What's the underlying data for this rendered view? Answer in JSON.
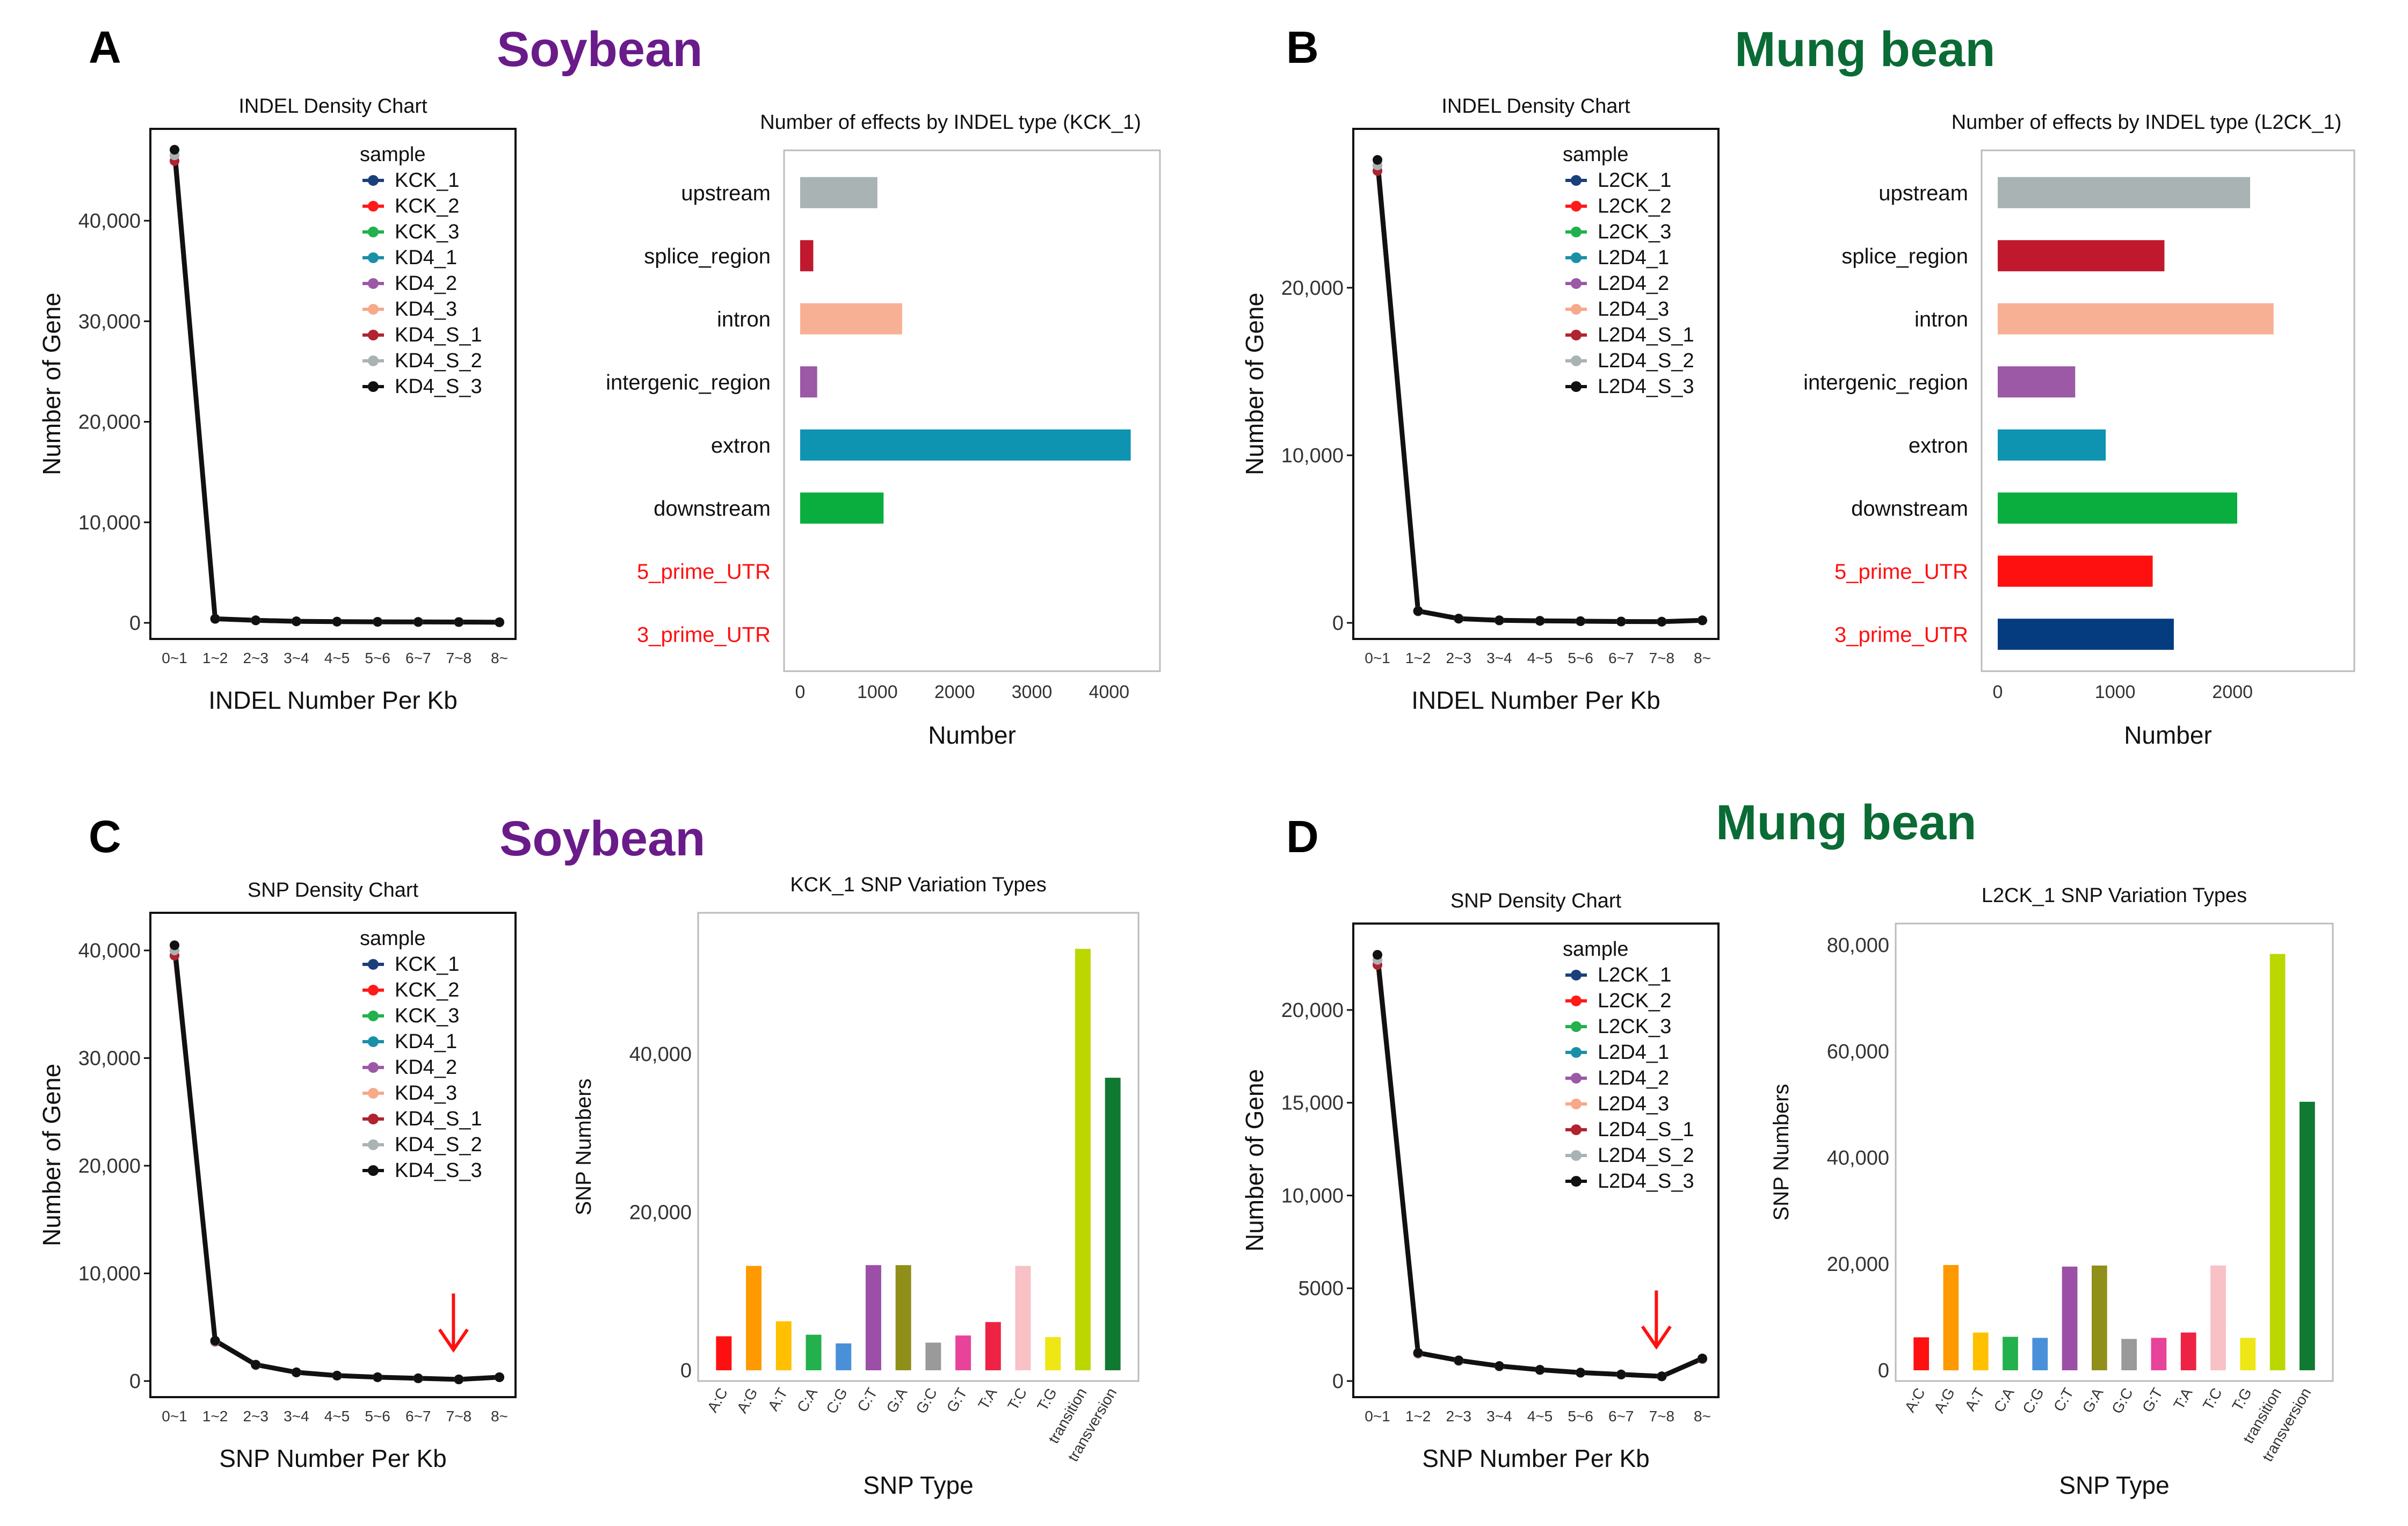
{
  "panels": {
    "A": {
      "letter": "A",
      "species": "Soybean"
    },
    "B": {
      "letter": "B",
      "species": "Mung bean"
    },
    "C": {
      "letter": "C",
      "species": "Soybean"
    },
    "D": {
      "letter": "D",
      "species": "Mung bean"
    }
  },
  "colors": {
    "samples": [
      "#1a3f7a",
      "#ff1a1a",
      "#22b14c",
      "#1a8fa8",
      "#9b59a6",
      "#f6a98b",
      "#b0232f",
      "#a9b3b3",
      "#111111"
    ],
    "indel_types": [
      "#a9b3b3",
      "#c0182c",
      "#f8b095",
      "#9b59a6",
      "#0e93b0",
      "#0aae3e",
      "#ff1010",
      "#053c80"
    ],
    "snp_types": [
      "#ff1010",
      "#ff9900",
      "#ffc000",
      "#22b14c",
      "#4a90d9",
      "#9b4fa6",
      "#8f8f1a",
      "#9a9a9a",
      "#e8439a",
      "#ee2244",
      "#f7c1c6",
      "#eee615",
      "#bcd600",
      "#107a32"
    ],
    "red_label": "#ff1010",
    "arrow": "#ff1010"
  },
  "chart_data": [
    {
      "id": "A1",
      "type": "line",
      "title": "INDEL Density Chart",
      "xlabel": "INDEL Number Per Kb",
      "ylabel": "Number of Gene",
      "categories": [
        "0~1",
        "1~2",
        "2~3",
        "3~4",
        "4~5",
        "5~6",
        "6~7",
        "7~8",
        "8~"
      ],
      "ylim": [
        0,
        47000
      ],
      "yticks": [
        0,
        10000,
        20000,
        30000,
        40000
      ],
      "ytick_labels": [
        "0",
        "10,000",
        "20,000",
        "30,000",
        "40,000"
      ],
      "legend_title": "sample",
      "legend": [
        "KCK_1",
        "KCK_2",
        "KCK_3",
        "KD4_1",
        "KD4_2",
        "KD4_3",
        "KD4_S_1",
        "KD4_S_2",
        "KD4_S_3"
      ],
      "values": [
        46500,
        400,
        250,
        150,
        120,
        100,
        90,
        80,
        60
      ]
    },
    {
      "id": "A2",
      "type": "bar",
      "orientation": "horizontal",
      "title": "Number of effects by INDEL type (KCK_1)",
      "xlabel": "Number",
      "ylabel": "",
      "categories": [
        "upstream",
        "splice_region",
        "intron",
        "intergenic_region",
        "extron",
        "downstream",
        "5_prime_UTR",
        "3_prime_UTR"
      ],
      "red_categories": [
        "5_prime_UTR",
        "3_prime_UTR"
      ],
      "values": [
        1000,
        170,
        1320,
        220,
        4280,
        1080,
        0,
        0
      ],
      "xlim": [
        0,
        4450
      ],
      "xticks": [
        0,
        1000,
        2000,
        3000,
        4000
      ],
      "xtick_labels": [
        "0",
        "1000",
        "2000",
        "3000",
        "4000"
      ]
    },
    {
      "id": "B1",
      "type": "line",
      "title": "INDEL Density Chart",
      "xlabel": "INDEL Number Per Kb",
      "ylabel": "Number of Gene",
      "categories": [
        "0~1",
        "1~2",
        "2~3",
        "3~4",
        "4~5",
        "5~6",
        "6~7",
        "7~8",
        "8~"
      ],
      "ylim": [
        0,
        28200
      ],
      "yticks": [
        0,
        10000,
        20000
      ],
      "ytick_labels": [
        "0",
        "10,000",
        "20,000"
      ],
      "legend_title": "sample",
      "legend": [
        "L2CK_1",
        "L2CK_2",
        "L2CK_3",
        "L2D4_1",
        "L2D4_2",
        "L2D4_3",
        "L2D4_S_1",
        "L2D4_S_2",
        "L2D4_S_3"
      ],
      "values": [
        27300,
        700,
        250,
        150,
        120,
        100,
        80,
        70,
        150
      ]
    },
    {
      "id": "B2",
      "type": "bar",
      "orientation": "horizontal",
      "title": "Number of effects by INDEL type (L2CK_1)",
      "xlabel": "Number",
      "ylabel": "",
      "categories": [
        "upstream",
        "splice_region",
        "intron",
        "intergenic_region",
        "extron",
        "downstream",
        "5_prime_UTR",
        "3_prime_UTR"
      ],
      "red_categories": [
        "5_prime_UTR",
        "3_prime_UTR"
      ],
      "values": [
        2150,
        1420,
        2350,
        660,
        920,
        2040,
        1320,
        1500
      ],
      "xlim": [
        0,
        2900
      ],
      "xticks": [
        0,
        1000,
        2000
      ],
      "xtick_labels": [
        "0",
        "1000",
        "2000"
      ]
    },
    {
      "id": "C1",
      "type": "line",
      "title": "SNP Density Chart",
      "xlabel": "SNP Number Per Kb",
      "ylabel": "Number of Gene",
      "categories": [
        "0~1",
        "1~2",
        "2~3",
        "3~4",
        "4~5",
        "5~6",
        "6~7",
        "7~8",
        "8~"
      ],
      "ylim": [
        0,
        41500
      ],
      "yticks": [
        0,
        10000,
        20000,
        30000,
        40000
      ],
      "ytick_labels": [
        "0",
        "10,000",
        "20,000",
        "30,000",
        "40,000"
      ],
      "legend_title": "sample",
      "legend": [
        "KCK_1",
        "KCK_2",
        "KCK_3",
        "KD4_1",
        "KD4_2",
        "KD4_3",
        "KD4_S_1",
        "KD4_S_2",
        "KD4_S_3"
      ],
      "values": [
        40000,
        3700,
        1500,
        800,
        500,
        350,
        250,
        150,
        350
      ],
      "arrow_at": "7~8"
    },
    {
      "id": "C2",
      "type": "bar",
      "title": "KCK_1 SNP  Variation Types",
      "xlabel": "SNP  Type",
      "ylabel": "SNP Numbers",
      "categories": [
        "A:C",
        "A:G",
        "A:T",
        "C:A",
        "C:G",
        "C:T",
        "G:A",
        "G:C",
        "G:T",
        "T:A",
        "T:C",
        "T:G",
        "transition",
        "transversion"
      ],
      "values": [
        4300,
        13200,
        6200,
        4500,
        3400,
        13300,
        13300,
        3500,
        4400,
        6100,
        13200,
        4200,
        53300,
        37000
      ],
      "ylim": [
        0,
        56500
      ],
      "yticks": [
        0,
        20000,
        40000
      ],
      "ytick_labels": [
        "0",
        "20,000",
        "40,000"
      ]
    },
    {
      "id": "D1",
      "type": "line",
      "title": "SNP Density Chart",
      "xlabel": "SNP Number Per Kb",
      "ylabel": "Number of Gene",
      "categories": [
        "0~1",
        "1~2",
        "2~3",
        "3~4",
        "4~5",
        "5~6",
        "6~7",
        "7~8",
        "8~"
      ],
      "ylim": [
        0,
        23500
      ],
      "yticks": [
        0,
        5000,
        10000,
        15000,
        20000
      ],
      "ytick_labels": [
        "0",
        "5000",
        "10,000",
        "15,000",
        "20,000"
      ],
      "legend_title": "sample",
      "legend": [
        "L2CK_1",
        "L2CK_2",
        "L2CK_3",
        "L2D4_1",
        "L2D4_2",
        "L2D4_3",
        "L2D4_S_1",
        "L2D4_S_2",
        "L2D4_S_3"
      ],
      "values": [
        22700,
        1500,
        1100,
        800,
        600,
        450,
        350,
        250,
        1200
      ],
      "arrow_at": "7~8"
    },
    {
      "id": "D2",
      "type": "bar",
      "title": "L2CK_1 SNP Variation Types",
      "xlabel": "SNP  Type",
      "ylabel": "SNP Numbers",
      "categories": [
        "A:C",
        "A:G",
        "A:T",
        "C:A",
        "C:G",
        "C:T",
        "G:A",
        "G:C",
        "G:T",
        "T:A",
        "T:C",
        "T:G",
        "transition",
        "transversion"
      ],
      "values": [
        6200,
        19800,
        7100,
        6300,
        6100,
        19500,
        19700,
        5900,
        6100,
        7100,
        19700,
        6100,
        78300,
        50500
      ],
      "ylim": [
        0,
        82000
      ],
      "yticks": [
        0,
        20000,
        40000,
        60000,
        80000
      ],
      "ytick_labels": [
        "0",
        "20,000",
        "40,000",
        "60,000",
        "80,000"
      ]
    }
  ]
}
